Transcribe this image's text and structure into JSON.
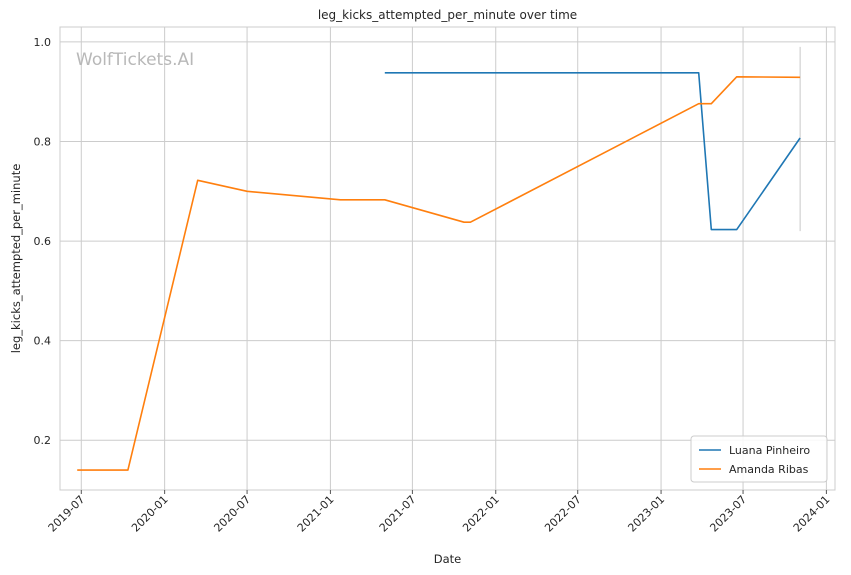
{
  "chart_data": {
    "type": "line",
    "title": "leg_kicks_attempted_per_minute over time",
    "xlabel": "Date",
    "ylabel": "leg_kicks_attempted_per_minute",
    "watermark": "WolfTickets.AI",
    "x_ticks": [
      "2019-07",
      "2020-01",
      "2020-07",
      "2021-01",
      "2021-07",
      "2022-01",
      "2022-07",
      "2023-01",
      "2023-07",
      "2024-01"
    ],
    "y_ticks": [
      "0.2",
      "0.4",
      "0.6",
      "0.8",
      "1.0"
    ],
    "xlim": [
      "2019-05-15",
      "2024-01-20"
    ],
    "ylim": [
      0.1,
      1.03
    ],
    "grid": true,
    "legend": "lower-right",
    "series": [
      {
        "name": "Luana Pinheiro",
        "color": "#1f77b4",
        "x": [
          "2021-05-01",
          "2023-03-25",
          "2023-04-22",
          "2023-06-17",
          "2023-11-04"
        ],
        "y": [
          0.938,
          0.938,
          0.623,
          0.623,
          0.807
        ]
      },
      {
        "name": "Amanda Ribas",
        "color": "#ff7f0e",
        "x": [
          "2019-06-22",
          "2019-10-12",
          "2020-03-14",
          "2020-07-01",
          "2021-01-23",
          "2021-05-01",
          "2021-10-23",
          "2021-11-06",
          "2023-03-25",
          "2023-04-22",
          "2023-06-17",
          "2023-11-04"
        ],
        "y": [
          0.14,
          0.14,
          0.722,
          0.7,
          0.683,
          0.683,
          0.638,
          0.638,
          0.876,
          0.876,
          0.93,
          0.929
        ]
      }
    ],
    "error_bar": {
      "x": "2023-11-04",
      "y_low": 0.62,
      "y_high": 0.99
    }
  }
}
